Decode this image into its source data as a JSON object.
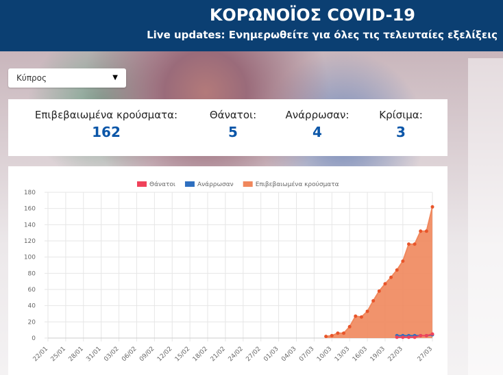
{
  "header": {
    "title": "ΚΟΡΩΝΟΪΟΣ COVID-19",
    "subtitle": "Live updates: Ενημερωθείτε για όλες τις τελευταίες εξελίξεις"
  },
  "dropdown": {
    "selected": "Κύπρος"
  },
  "stats": [
    {
      "label": "Επιβεβαιωμένα κρούσματα:",
      "value": 162
    },
    {
      "label": "Θάνατοι:",
      "value": 5
    },
    {
      "label": "Ανάρρωσαν:",
      "value": 4
    },
    {
      "label": "Κρίσιμα:",
      "value": 3
    }
  ],
  "chart_data": {
    "type": "line",
    "categories": [
      "22/01",
      null,
      null,
      "25/01",
      null,
      null,
      "28/01",
      null,
      null,
      "31/01",
      null,
      null,
      "03/02",
      null,
      null,
      "06/02",
      null,
      null,
      "09/02",
      null,
      null,
      "12/02",
      null,
      null,
      "15/02",
      null,
      null,
      "18/02",
      null,
      null,
      "21/02",
      null,
      null,
      "24/02",
      null,
      null,
      "27/02",
      null,
      null,
      "01/03",
      null,
      null,
      "04/03",
      null,
      null,
      "07/03",
      null,
      null,
      "10/03",
      null,
      null,
      "13/03",
      null,
      null,
      "16/03",
      null,
      null,
      "19/03",
      null,
      null,
      "22/03",
      null,
      null,
      null,
      null,
      "27/03"
    ],
    "series": [
      {
        "name": "Θάνατοι",
        "color": "#f0425a",
        "values": [
          null,
          null,
          null,
          null,
          null,
          null,
          null,
          null,
          null,
          null,
          null,
          null,
          null,
          null,
          null,
          null,
          null,
          null,
          null,
          null,
          null,
          null,
          null,
          null,
          null,
          null,
          null,
          null,
          null,
          null,
          null,
          null,
          null,
          null,
          null,
          null,
          null,
          null,
          null,
          null,
          null,
          null,
          null,
          null,
          null,
          null,
          null,
          null,
          null,
          null,
          null,
          null,
          null,
          null,
          null,
          null,
          null,
          null,
          null,
          1,
          1,
          1,
          1,
          3,
          3,
          5
        ]
      },
      {
        "name": "Ανάρρωσαν",
        "color": "#2e6fc0",
        "values": [
          null,
          null,
          null,
          null,
          null,
          null,
          null,
          null,
          null,
          null,
          null,
          null,
          null,
          null,
          null,
          null,
          null,
          null,
          null,
          null,
          null,
          null,
          null,
          null,
          null,
          null,
          null,
          null,
          null,
          null,
          null,
          null,
          null,
          null,
          null,
          null,
          null,
          null,
          null,
          null,
          null,
          null,
          null,
          null,
          null,
          null,
          null,
          null,
          null,
          null,
          null,
          null,
          null,
          null,
          null,
          null,
          null,
          null,
          null,
          3,
          3,
          3,
          3,
          3,
          3,
          4
        ]
      },
      {
        "name": "Επιβεβαιωμένα κρούσματα",
        "color": "#f0875c",
        "area": true,
        "values": [
          null,
          null,
          null,
          null,
          null,
          null,
          null,
          null,
          null,
          null,
          null,
          null,
          null,
          null,
          null,
          null,
          null,
          null,
          null,
          null,
          null,
          null,
          null,
          null,
          null,
          null,
          null,
          null,
          null,
          null,
          null,
          null,
          null,
          null,
          null,
          null,
          null,
          null,
          null,
          null,
          null,
          null,
          null,
          null,
          null,
          null,
          null,
          2,
          3,
          6,
          6,
          14,
          27,
          26,
          33,
          46,
          58,
          67,
          75,
          84,
          95,
          116,
          116,
          132,
          132,
          162
        ]
      }
    ],
    "ylim": [
      0,
      180
    ],
    "yticks": [
      0,
      20,
      40,
      60,
      80,
      100,
      120,
      140,
      160,
      180
    ],
    "grid": true,
    "legend": "top"
  }
}
